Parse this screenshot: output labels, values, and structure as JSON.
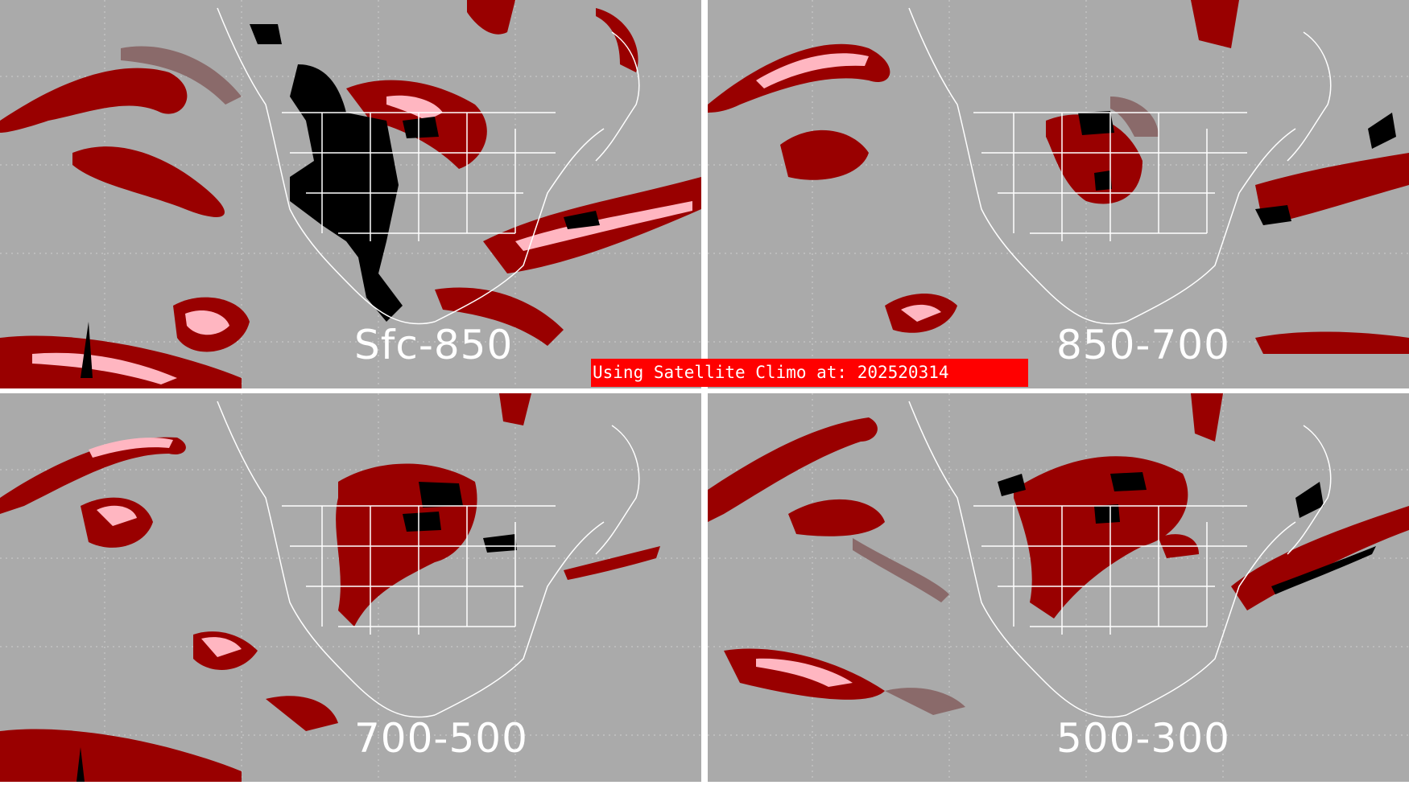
{
  "panels": [
    {
      "label": "Sfc-850"
    },
    {
      "label": "850-700"
    },
    {
      "label": "700-500"
    },
    {
      "label": "500-300"
    }
  ],
  "banner": {
    "text": "Using Satellite Climo at: 202520314",
    "color": "#ff0000"
  },
  "colors": {
    "background": "#aaaaaa",
    "dark_red": "#990000",
    "pink": "#ffb6c1",
    "brownish": "#8a6a6a",
    "black": "#000000",
    "outline": "#ffffff"
  }
}
